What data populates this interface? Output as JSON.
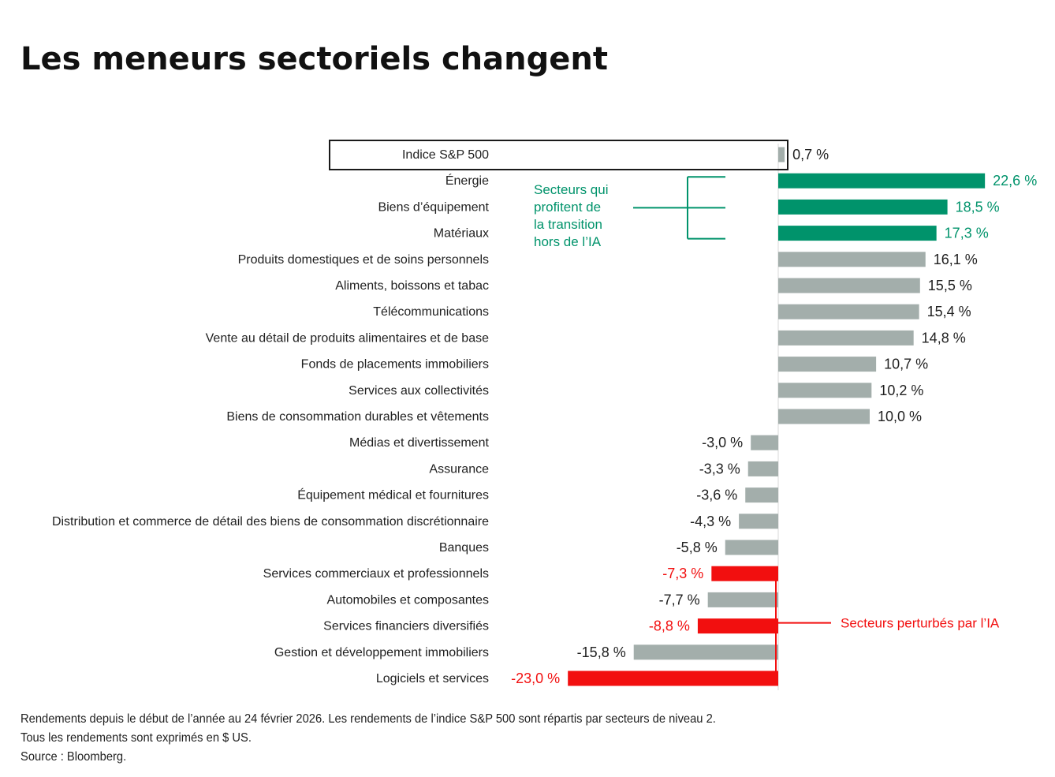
{
  "title": "Les meneurs sectoriels changent",
  "chart_data": {
    "type": "bar",
    "orientation": "horizontal",
    "categories": [
      "Indice S&P  500",
      "Énergie",
      "Biens d’équipement",
      "Matériaux",
      "Produits domestiques et de soins personnels",
      "Aliments, boissons et tabac",
      "Télécommunications",
      "Vente au détail de produits alimentaires et de base",
      "Fonds de placements immobiliers",
      "Services aux collectivités",
      "Biens de consommation durables et vêtements",
      "Médias et divertissement",
      "Assurance",
      "Équipement médical et fournitures",
      "Distribution et commerce de détail des biens de consommation discrétionnaire",
      "Banques",
      "Services commerciaux et professionnels",
      "Automobiles et composantes",
      "Services financiers diversifiés",
      "Gestion et développement immobiliers",
      "Logiciels et services"
    ],
    "values": [
      0.7,
      22.6,
      18.5,
      17.3,
      16.1,
      15.5,
      15.4,
      14.8,
      10.7,
      10.2,
      10.0,
      -3.0,
      -3.3,
      -3.6,
      -4.3,
      -5.8,
      -7.3,
      -7.7,
      -8.8,
      -15.8,
      -23.0
    ],
    "value_labels": [
      "0,7 %",
      "22,6 %",
      "18,5 %",
      "17,3 %",
      "16,1 %",
      "15,5 %",
      "15,4 %",
      "14,8 %",
      "10,7 %",
      "10,2 %",
      "10,0 %",
      "-3,0 %",
      "-3,3 %",
      "-3,6 %",
      "-4,3 %",
      "-5,8 %",
      "-7,3 %",
      "-7,7 %",
      "-8,8 %",
      "-15,8 %",
      "-23,0 %"
    ],
    "groups": [
      "neutral",
      "benefit",
      "benefit",
      "benefit",
      "neutral",
      "neutral",
      "neutral",
      "neutral",
      "neutral",
      "neutral",
      "neutral",
      "neutral",
      "neutral",
      "neutral",
      "neutral",
      "neutral",
      "disrupted",
      "neutral",
      "disrupted",
      "neutral",
      "disrupted"
    ],
    "highlighted_category": "Indice S&P  500",
    "annotations": {
      "benefit": [
        "Secteurs qui",
        "profitent de",
        "la transition",
        "hors de l’IA"
      ],
      "disrupted": "Secteurs perturbés par l’IA"
    },
    "unit": "%",
    "xlim": [
      -23.0,
      22.6
    ]
  },
  "colors": {
    "neutral": "#a3aeab",
    "benefit": "#00936b",
    "disrupted": "#f20f0f",
    "text": "#1f1f1f"
  },
  "footnotes": [
    "Rendements depuis le début de l’année au 24 février 2026. Les rendements de l’indice S&P 500 sont répartis par secteurs de niveau 2.",
    "Tous les rendements sont exprimés en $ US.",
    "Source : Bloomberg."
  ]
}
